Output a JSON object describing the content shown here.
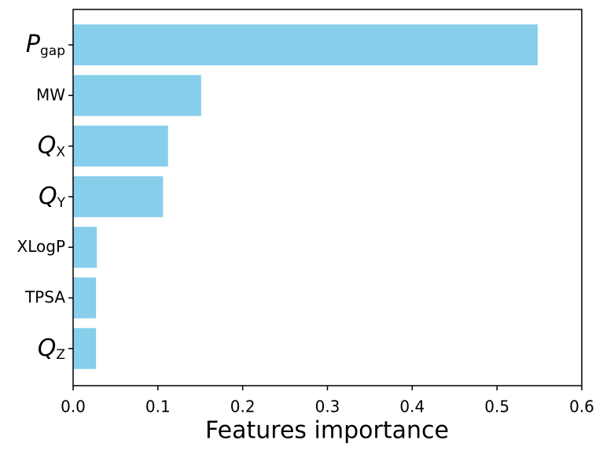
{
  "chart_data": {
    "type": "barh",
    "xlabel": "Features importance",
    "categories": [
      [
        "P",
        "gap"
      ],
      [
        "MW"
      ],
      [
        "Q",
        "X"
      ],
      [
        "Q",
        "Y"
      ],
      [
        "XLogP"
      ],
      [
        "TPSA"
      ],
      [
        "Q",
        "Z"
      ]
    ],
    "values": [
      0.548,
      0.151,
      0.112,
      0.106,
      0.028,
      0.027,
      0.027
    ],
    "color": "#87ceeb",
    "xlim": [
      0,
      0.6
    ],
    "xticks": [
      {
        "value": 0,
        "label": "0.0"
      },
      0.1,
      0.2,
      0.3,
      0.4,
      0.5,
      0.6
    ]
  }
}
